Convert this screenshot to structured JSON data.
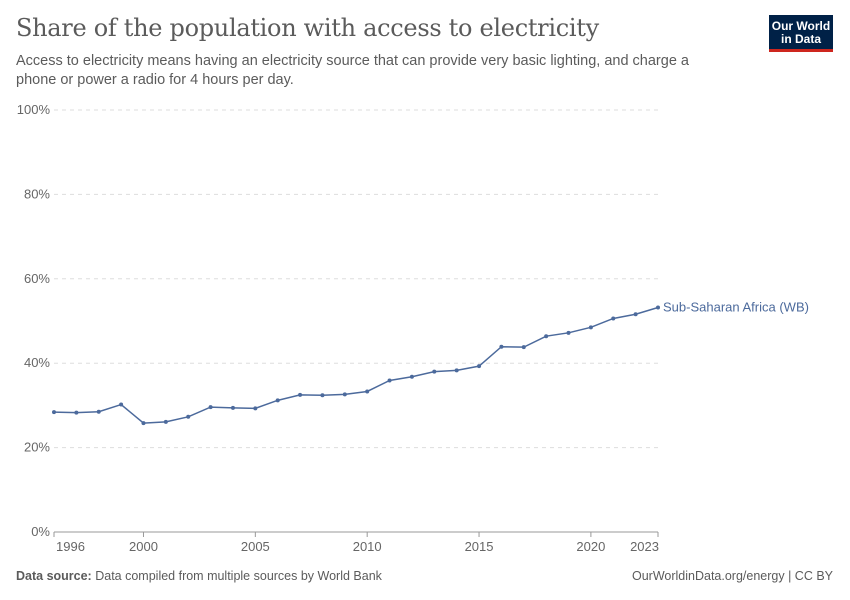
{
  "header": {
    "title": "Share of the population with access to electricity",
    "subtitle": "Access to electricity means having an electricity source that can provide very basic lighting, and charge a phone or power a radio for 4 hours per day.",
    "logo": "Our World in Data"
  },
  "footer": {
    "source_label": "Data source:",
    "source_text": "Data compiled from multiple sources by World Bank",
    "credit": "OurWorldinData.org/energy | CC BY"
  },
  "chart_data": {
    "type": "line",
    "title": "Share of the population with access to electricity",
    "xlim": [
      1996,
      2023
    ],
    "ylim": [
      0,
      100
    ],
    "x_ticks": [
      "1996",
      "2000",
      "2005",
      "2010",
      "2015",
      "2020",
      "2023"
    ],
    "y_ticks": [
      "0%",
      "20%",
      "40%",
      "60%",
      "80%",
      "100%"
    ],
    "grid": "horizontal dashed",
    "legend": "end-of-line label",
    "series": [
      {
        "name": "Sub-Saharan Africa (WB)",
        "color": "#4c6a9c",
        "x": [
          1996,
          1997,
          1998,
          1999,
          2000,
          2001,
          2002,
          2003,
          2004,
          2005,
          2006,
          2007,
          2008,
          2009,
          2010,
          2011,
          2012,
          2013,
          2014,
          2015,
          2016,
          2017,
          2018,
          2019,
          2020,
          2021,
          2022,
          2023
        ],
        "values": [
          28.4,
          28.3,
          28.5,
          30.2,
          25.8,
          26.1,
          27.3,
          29.6,
          29.4,
          29.3,
          31.2,
          32.5,
          32.4,
          32.6,
          33.3,
          35.9,
          36.8,
          38.0,
          38.3,
          39.3,
          43.9,
          43.8,
          46.4,
          47.2,
          48.5,
          50.6,
          51.6,
          53.2
        ]
      }
    ]
  }
}
